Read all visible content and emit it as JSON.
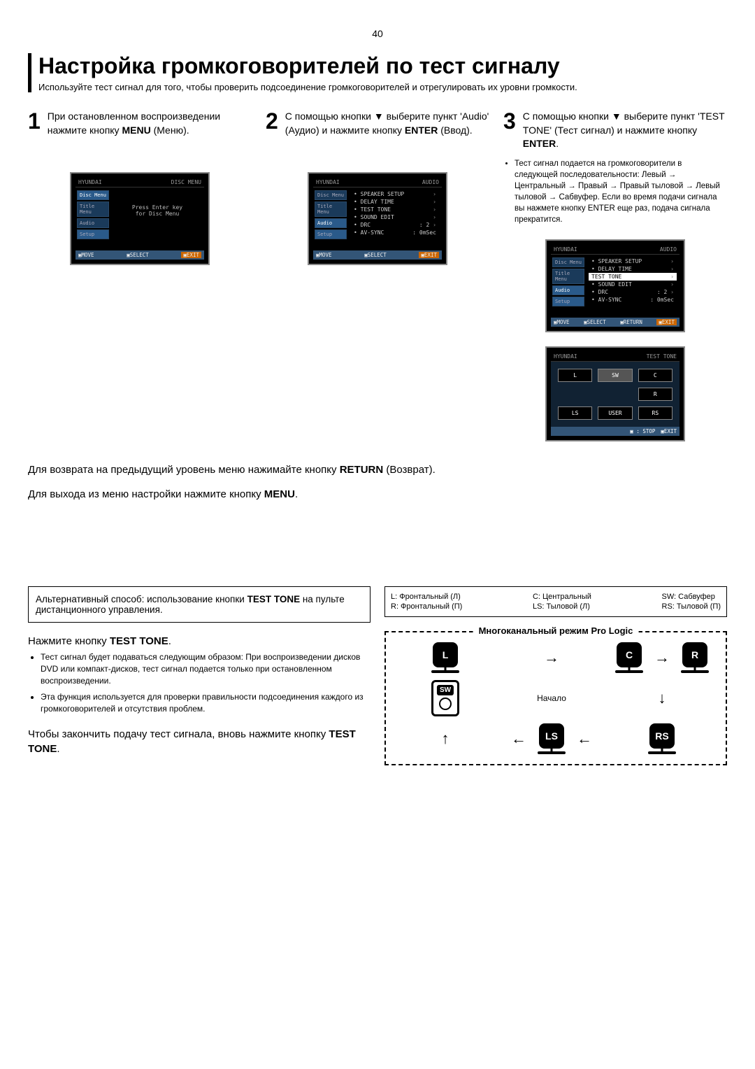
{
  "page_number": "40",
  "title": "Настройка громкоговорителей по тест сигналу",
  "subtitle": "Используйте тест сигнал для того, чтобы проверить подсоединение громкоговорителей и отрегулировать их уровни громкости.",
  "steps": {
    "s1": {
      "num": "1",
      "text_a": "При остановленном воспроизведении нажмите кнопку ",
      "bold": "MENU",
      "text_b": " (Меню)."
    },
    "s2": {
      "num": "2",
      "text_a": "С помощью кнопки ",
      "arrow": "▼",
      "text_b": " выберите пункт 'Audio' (Аудио) и нажмите кнопку ",
      "bold": "ENTER",
      "text_c": " (Ввод)."
    },
    "s3": {
      "num": "3",
      "text_a": "С помощью кнопки ",
      "arrow": "▼",
      "text_b": " выберите пункт 'TEST TONE' (Тест сигнал) и нажмите кнопку ",
      "bold": "ENTER",
      "text_c": "."
    }
  },
  "step3_note": "Тест сигнал подается на громкоговорители в следующей последовательности: Левый → Центральный → Правый → Правый тыловой → Левый тыловой → Сабвуфер. Если во время подачи сигнала вы нажмете кнопку ENTER еще раз, подача сигнала прекратится.",
  "osd1": {
    "top_left": "HYUNDAI",
    "top_right": "DISC MENU",
    "sidebar": [
      "Disc Menu",
      "Title Menu",
      "Audio",
      "Setup"
    ],
    "center1": "Press Enter key",
    "center2": "for Disc Menu",
    "bottom": {
      "move": "▣MOVE",
      "select": "▣SELECT",
      "exit": "▣EXIT"
    }
  },
  "osd2": {
    "top_left": "HYUNDAI",
    "top_right": "AUDIO",
    "sidebar": [
      "Disc Menu",
      "Title Menu",
      "Audio",
      "Setup"
    ],
    "items": [
      {
        "label": "• SPEAKER SETUP",
        "val": "",
        "arrow": "›"
      },
      {
        "label": "• DELAY TIME",
        "val": "",
        "arrow": "›"
      },
      {
        "label": "• TEST TONE",
        "val": "",
        "arrow": "›"
      },
      {
        "label": "• SOUND EDIT",
        "val": "",
        "arrow": "›"
      },
      {
        "label": "• DRC",
        "val": ": 2",
        "arrow": "›"
      },
      {
        "label": "• AV-SYNC",
        "val": ": 0mSec",
        "arrow": ""
      }
    ],
    "bottom": {
      "move": "▣MOVE",
      "select": "▣SELECT",
      "exit": "▣EXIT"
    }
  },
  "osd3": {
    "top_left": "HYUNDAI",
    "top_right": "AUDIO",
    "sidebar": [
      "Disc Menu",
      "Title Menu",
      "Audio",
      "Setup"
    ],
    "items": [
      {
        "label": "• SPEAKER SETUP",
        "val": "",
        "arrow": "›",
        "hl": false
      },
      {
        "label": "• DELAY TIME",
        "val": "",
        "arrow": "›",
        "hl": false
      },
      {
        "label": "  TEST TONE",
        "val": "",
        "arrow": "›",
        "hl": true
      },
      {
        "label": "• SOUND EDIT",
        "val": "",
        "arrow": "›",
        "hl": false
      },
      {
        "label": "• DRC",
        "val": ": 2",
        "arrow": "›",
        "hl": false
      },
      {
        "label": "• AV-SYNC",
        "val": ": 0mSec",
        "arrow": "",
        "hl": false
      }
    ],
    "bottom": {
      "move": "▣MOVE",
      "select": "▣SELECT",
      "return": "▣RETURN",
      "exit": "▣EXIT"
    }
  },
  "osd4": {
    "top_left": "HYUNDAI",
    "top_right": "TEST TONE",
    "speakers": [
      "L",
      "SW",
      "C",
      "R",
      "LS",
      "USER",
      "RS"
    ],
    "bottom": {
      "stop": "▣ : STOP",
      "exit": "▣EXIT"
    }
  },
  "return_block": {
    "line1a": "Для возврата на предыдущий уровень меню нажимайте кнопку ",
    "line1b": "RETURN",
    "line1c": " (Возврат).",
    "line2a": "Для выхода из меню настройки нажмите кнопку ",
    "line2b": "MENU",
    "line2c": "."
  },
  "alt_box": {
    "a": "Альтернативный способ: использование кнопки ",
    "b": "TEST TONE",
    "c": " на пульте дистанционного управления."
  },
  "legend": {
    "L": "L: Фронтальный (Л)",
    "R": "R: Фронтальный (П)",
    "C": "C: Центральный",
    "LS": "LS: Тыловой (Л)",
    "SW": "SW: Сабвуфер",
    "RS": "RS: Тыловой (П)"
  },
  "press": {
    "title_a": "Нажмите кнопку ",
    "title_b": "TEST TONE",
    "title_c": ".",
    "li1": "Тест сигнал будет подаваться следующим образом: При воспроизведении дисков DVD или компакт-дисков, тест сигнал подается только при остановленном воспроизведении.",
    "li2": "Эта функция используется для проверки правильности подсоединения каждого из громкоговорителей и отсутствия проблем."
  },
  "finish": {
    "a": "Чтобы закончить подачу тест сигнала, вновь нажмите кнопку ",
    "b": "TEST TONE",
    "c": "."
  },
  "diagram": {
    "title": "Многоканальный режим Pro Logic",
    "L": "L",
    "C": "C",
    "R": "R",
    "SW": "SW",
    "LS": "LS",
    "RS": "RS",
    "start": "Начало",
    "arrows": {
      "right": "→",
      "left": "←",
      "down": "↓",
      "up": "↑"
    }
  },
  "colors": {
    "osd_bg": "#000000",
    "osd_sidebar": "#1a3a5a",
    "osd_footer": "#335577",
    "osd_exit": "#cc6600"
  }
}
